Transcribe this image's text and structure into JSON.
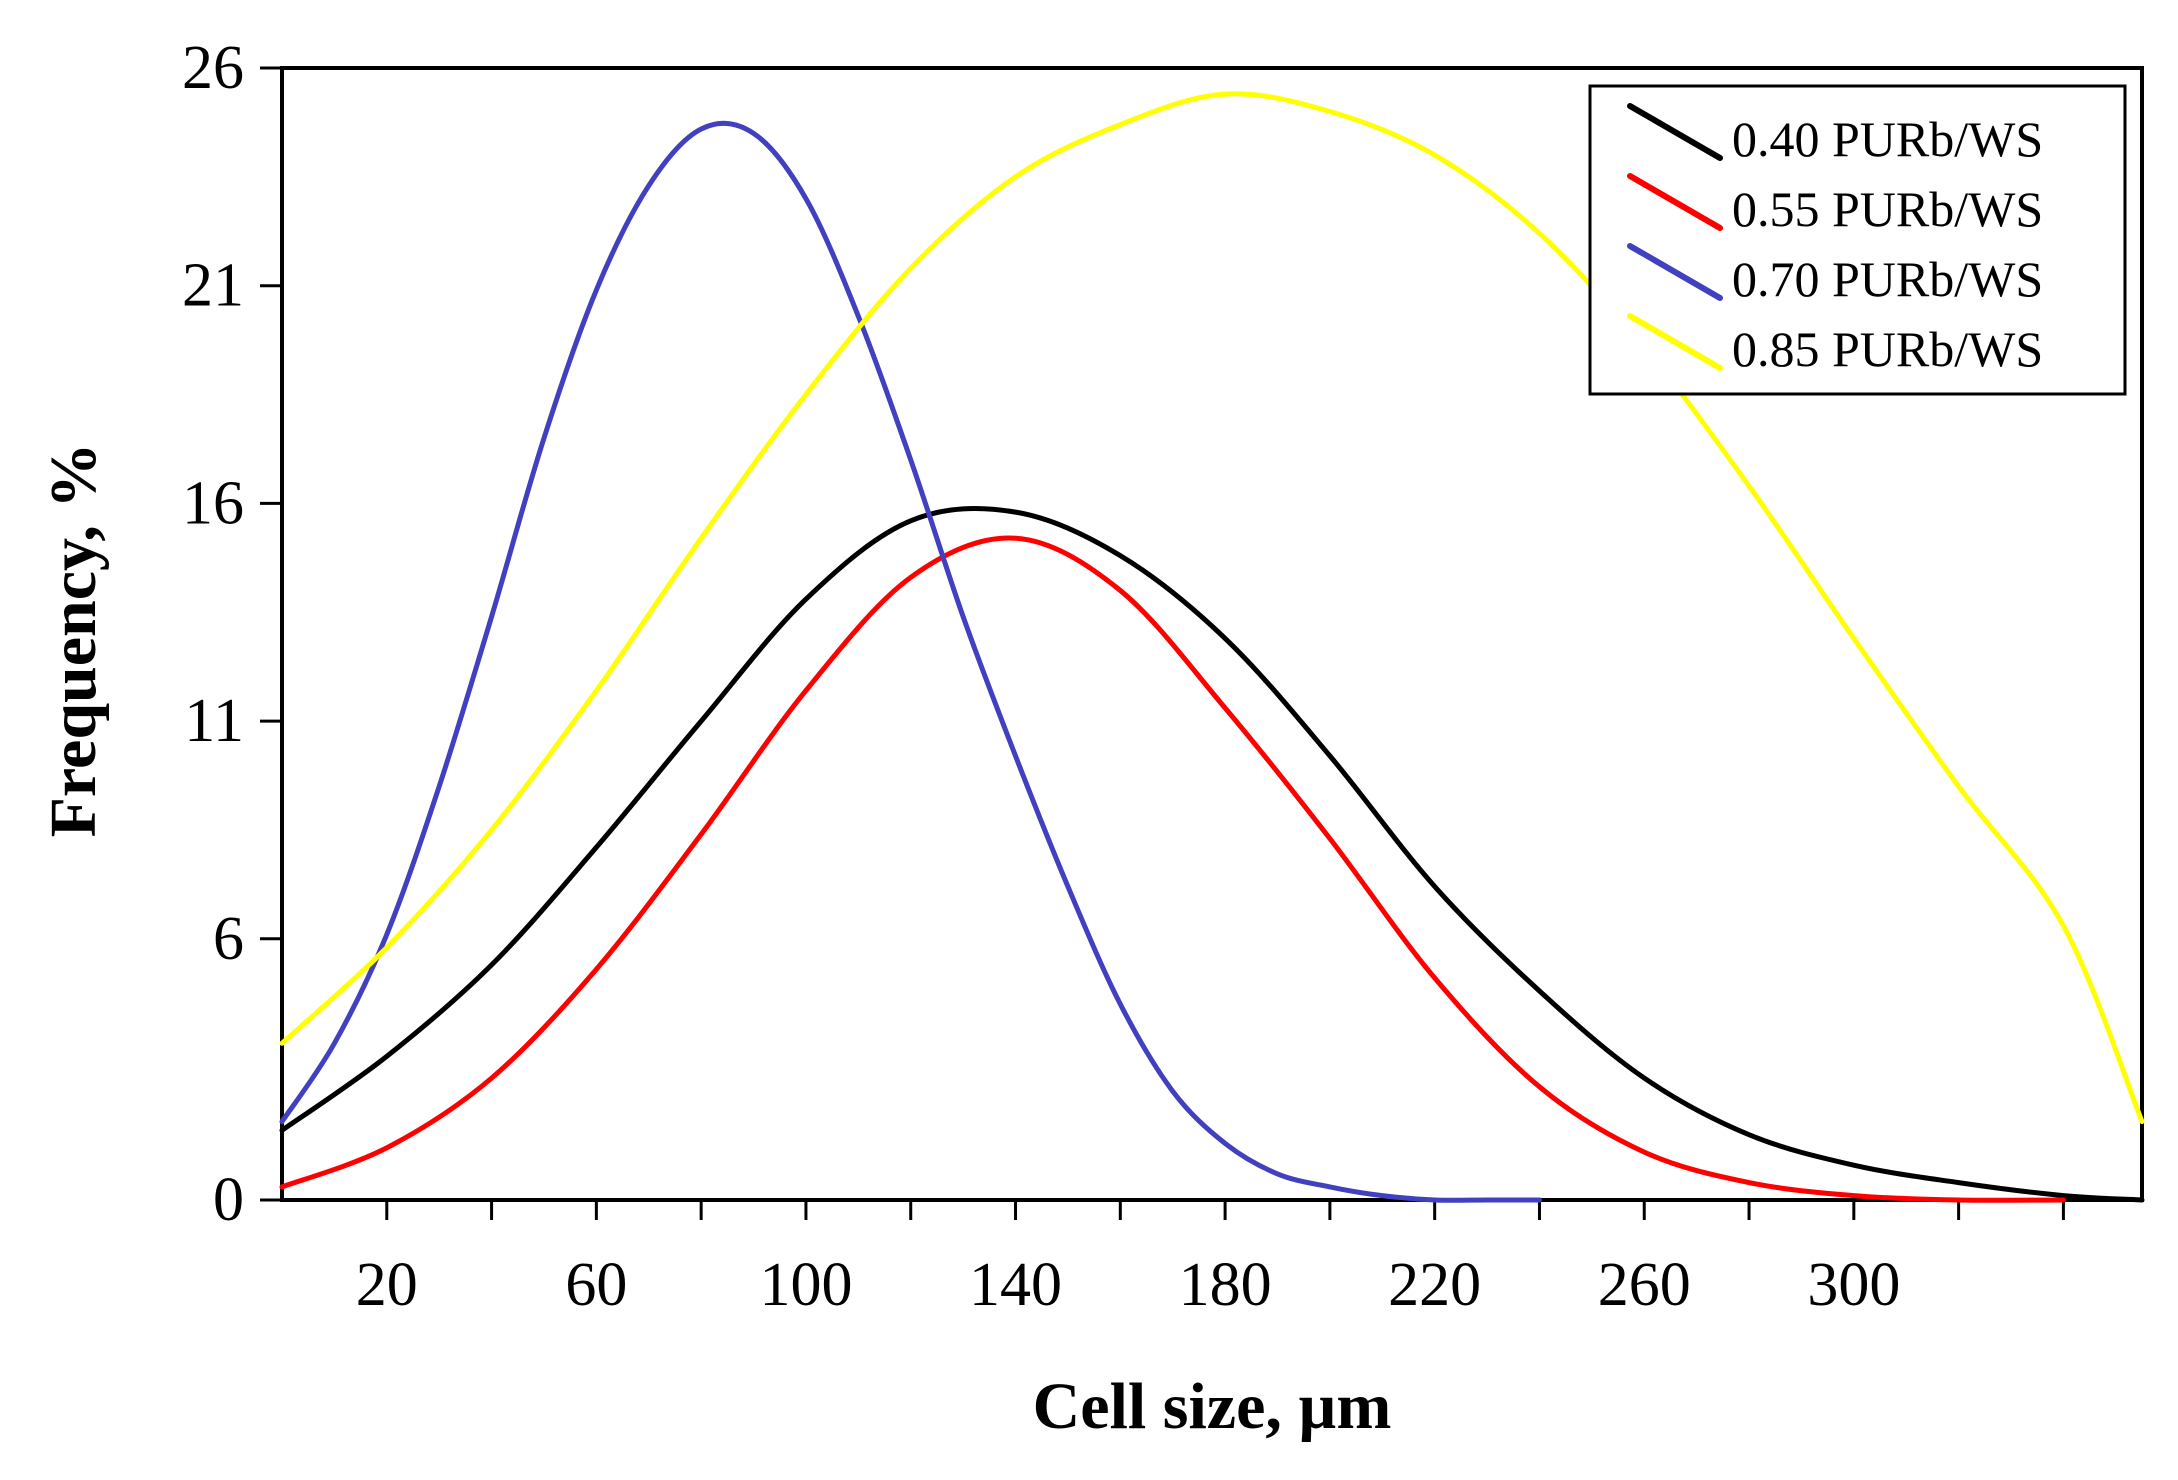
{
  "chart_data": {
    "type": "line",
    "title": "",
    "xlabel": "Cell size, µm",
    "ylabel": "Frequency, %",
    "xlim": [
      0,
      355
    ],
    "ylim": [
      0,
      26
    ],
    "x_ticks": [
      20,
      60,
      100,
      140,
      180,
      220,
      260,
      300
    ],
    "x_minor_ticks": [
      40,
      80,
      120,
      160,
      200,
      240,
      280,
      320,
      340
    ],
    "y_ticks": [
      0,
      6,
      11,
      16,
      21,
      26
    ],
    "grid": false,
    "legend_position": "top-right",
    "series": [
      {
        "name": "0.40 PURb/WS",
        "color": "#000000",
        "x": [
          0,
          20,
          40,
          60,
          80,
          100,
          120,
          140,
          160,
          180,
          200,
          220,
          240,
          260,
          280,
          300,
          320,
          340,
          355
        ],
        "values": [
          1.6,
          3.3,
          5.4,
          8.1,
          11.0,
          13.8,
          15.6,
          15.8,
          14.8,
          12.9,
          10.2,
          7.2,
          4.8,
          2.8,
          1.5,
          0.8,
          0.4,
          0.1,
          0.0
        ]
      },
      {
        "name": "0.55 PURb/WS",
        "color": "#ff0000",
        "x": [
          0,
          20,
          40,
          60,
          80,
          100,
          120,
          140,
          160,
          180,
          200,
          220,
          240,
          260,
          280,
          300,
          320,
          340
        ],
        "values": [
          0.3,
          1.2,
          2.8,
          5.3,
          8.4,
          11.7,
          14.3,
          15.2,
          14.0,
          11.3,
          8.3,
          5.1,
          2.6,
          1.1,
          0.4,
          0.1,
          0.0,
          0.0
        ]
      },
      {
        "name": "0.70 PURb/WS",
        "color": "#4040c0",
        "x": [
          0,
          10,
          20,
          30,
          40,
          50,
          60,
          70,
          80,
          90,
          100,
          110,
          120,
          130,
          140,
          150,
          160,
          170,
          180,
          190,
          200,
          210,
          220,
          230,
          240
        ],
        "values": [
          1.8,
          3.6,
          6.1,
          9.5,
          13.4,
          17.5,
          20.9,
          23.3,
          24.6,
          24.5,
          23.0,
          20.3,
          17.0,
          13.4,
          10.2,
          7.2,
          4.5,
          2.5,
          1.3,
          0.6,
          0.3,
          0.1,
          0.0,
          0.0,
          0.0
        ]
      },
      {
        "name": "0.85 PURb/WS",
        "color": "#ffff00",
        "x": [
          0,
          20,
          40,
          60,
          80,
          100,
          120,
          140,
          160,
          180,
          200,
          220,
          240,
          260,
          280,
          300,
          320,
          340,
          355
        ],
        "values": [
          3.6,
          5.8,
          8.5,
          11.7,
          15.2,
          18.5,
          21.4,
          23.5,
          24.7,
          25.4,
          25.0,
          24.0,
          22.2,
          19.6,
          16.4,
          12.9,
          9.5,
          6.3,
          1.8
        ]
      }
    ]
  }
}
